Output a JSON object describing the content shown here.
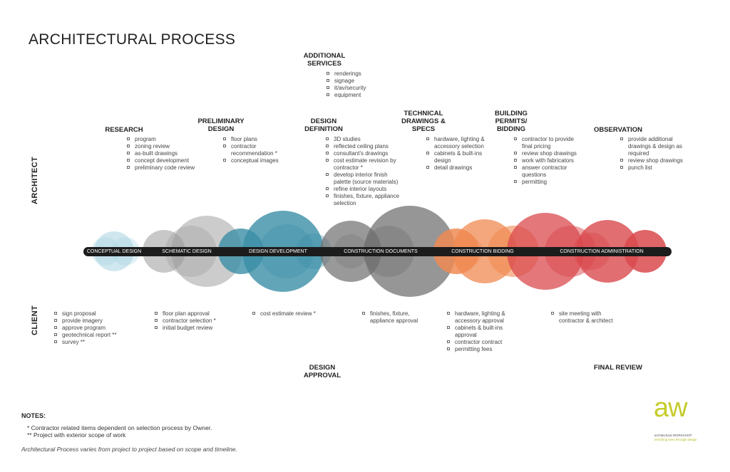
{
  "title": "ARCHITECTURAL PROCESS",
  "side_labels": {
    "architect": "ARCHITECT",
    "client": "CLIENT"
  },
  "architect_headings": {
    "additional_services": "ADDITIONAL\nSERVICES",
    "research": "RESEARCH",
    "preliminary_design": "PRELIMINARY\nDESIGN",
    "design_definition": "DESIGN\nDEFINITION",
    "technical_drawings": "TECHNICAL\nDRAWINGS &\nSPECS",
    "building_permits": "BUILDING\nPERMITS/\nBIDDING",
    "observation": "OBSERVATION"
  },
  "architect_lists": {
    "additional_services": [
      "renderings",
      "signage",
      "it/av/security",
      "equipment"
    ],
    "research": [
      "program",
      "zoning review",
      "as-built drawings",
      "concept development",
      "preliminary code review"
    ],
    "preliminary_design": [
      "floor plans",
      "contractor recommendation *",
      "conceptual images"
    ],
    "design_definition": [
      "3D studies",
      "reflected ceiling plans",
      "consultant's drawings",
      "cost estimate revision by contractor *",
      "develop interior finish palette (source materials)",
      "refine interior layouts",
      "finishes, fixture, appliance selection"
    ],
    "technical_drawings": [
      "hardware, lighting & accessory selection",
      "cabinets & built-ins design",
      "detail drawings"
    ],
    "building_permits": [
      "contractor to provide final pricing",
      "review shop drawings",
      "work with fabricators",
      "answer contractor questions",
      "permitting"
    ],
    "observation": [
      "provide additional drawings & design as required",
      "review shop drawings",
      "punch list"
    ]
  },
  "phases": [
    {
      "label": "CONCEPTUAL DESIGN",
      "color": "#a9d3e2"
    },
    {
      "label": "SCHEMATIC DESIGN",
      "color": "#9a9a9a"
    },
    {
      "label": "DESIGN DEVELOPMENT",
      "color": "#3b8ea6"
    },
    {
      "label": "CONSTRUCTION DOCUMENTS",
      "color": "#6d6d6d"
    },
    {
      "label": "CONSTRUCTION BIDDING",
      "color": "#f08a52"
    },
    {
      "label": "CONSTRUCTION ADMINISTRATION",
      "color": "#d94a4d"
    }
  ],
  "timeline_bar_color": "#1c1c1c",
  "client_lists": {
    "c1": [
      "sign proposal",
      "provide imagery",
      "approve program",
      "geotechnical report **",
      "survey **"
    ],
    "c2": [
      "floor plan approval",
      "contractor selection *",
      "initial budget review"
    ],
    "c3": [
      "cost estimate review *"
    ],
    "c4": [
      "finishes, fixture, appliance approval"
    ],
    "c5": [
      "hardware, lighting & accessory approval",
      "cabinets & built-ins approval",
      "contractor contract",
      "permitting fees"
    ],
    "c6": [
      "site meeting with contractor & architect"
    ]
  },
  "client_headings": {
    "design_approval": "DESIGN\nAPPROVAL",
    "final_review": "FINAL REVIEW"
  },
  "notes": {
    "title": "NOTES:",
    "note1": "* Contractor related items dependent on selection process by Owner.",
    "note2": "** Project with exterior scope of work",
    "footnote": "Architectural Process varies from project to project based on scope and timeline."
  },
  "logo": {
    "mark": "aw",
    "line1": "architectural WORKSHOP",
    "line2": "enriching lives through design",
    "color": "#c6cc2b"
  }
}
